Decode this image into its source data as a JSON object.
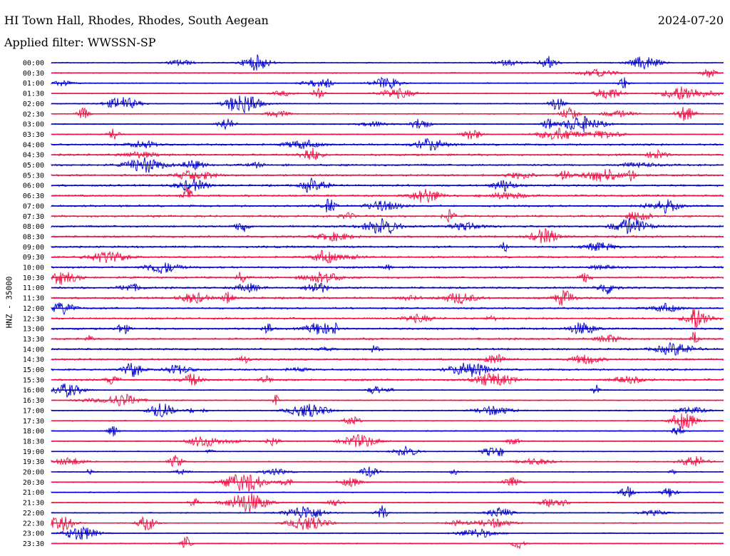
{
  "header": {
    "station": "HI Town Hall, Rhodes, Rhodes, South Aegean",
    "date": "2024-07-20",
    "filter": "Applied filter: WWSSN-SP"
  },
  "colors": {
    "even": "#0000cc",
    "odd": "#ee1144"
  },
  "chart_data": {
    "type": "line",
    "title": "HI Town Hall, Rhodes, Rhodes, South Aegean",
    "subtitle": "Applied filter: WWSSN-SP",
    "ylabel": "HNZ - 35000",
    "xlabel": "",
    "rows": [
      "00:00",
      "00:30",
      "01:00",
      "01:30",
      "02:00",
      "02:30",
      "03:00",
      "03:30",
      "04:00",
      "04:30",
      "05:00",
      "05:30",
      "06:00",
      "06:30",
      "07:00",
      "07:30",
      "08:00",
      "08:30",
      "09:00",
      "09:30",
      "10:00",
      "10:30",
      "11:00",
      "11:30",
      "12:00",
      "12:30",
      "13:00",
      "13:30",
      "14:00",
      "14:30",
      "15:00",
      "15:30",
      "16:00",
      "16:30",
      "17:00",
      "17:30",
      "18:00",
      "18:30",
      "19:00",
      "19:30",
      "20:00",
      "20:30",
      "21:00",
      "21:30",
      "22:00",
      "22:30",
      "23:00",
      "23:30"
    ],
    "series_colors": [
      "#0000cc",
      "#ee1144"
    ],
    "x_range_minutes": [
      0,
      30
    ],
    "grid": false
  }
}
